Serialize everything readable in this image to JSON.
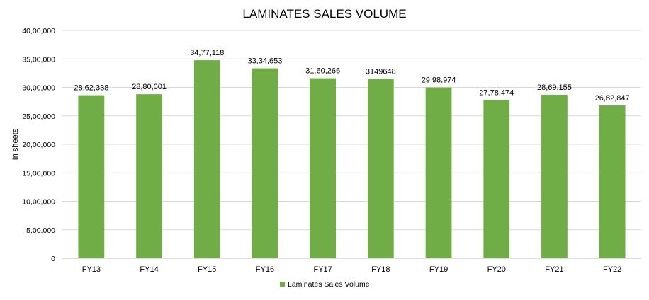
{
  "chart_data": {
    "type": "bar",
    "title": "LAMINATES SALES VOLUME",
    "ylabel": "In sheets",
    "xlabel": "",
    "categories": [
      "FY13",
      "FY14",
      "FY15",
      "FY16",
      "FY17",
      "FY18",
      "FY19",
      "FY20",
      "FY21",
      "FY22"
    ],
    "series": [
      {
        "name": "Laminates Sales Volume",
        "color": "#70ad47",
        "values": [
          2862338,
          2880001,
          3477118,
          3334653,
          3160266,
          3149648,
          2998974,
          2778474,
          2869155,
          2682847
        ],
        "data_labels": [
          "28,62,338",
          "28,80,001",
          "34,77,118",
          "33,34,653",
          "31,60,266",
          "3149648",
          "29,98,974",
          "27,78,474",
          "28,69,155",
          "26,82,847"
        ]
      }
    ],
    "ylim": [
      0,
      4000000
    ],
    "yticks": [
      0,
      500000,
      1000000,
      1500000,
      2000000,
      2500000,
      3000000,
      3500000,
      4000000
    ],
    "ytick_labels": [
      "0",
      "5,00,000",
      "10,00,000",
      "15,00,000",
      "20,00,000",
      "25,00,000",
      "30,00,000",
      "35,00,000",
      "40,00,000"
    ],
    "grid": true,
    "legend_position": "bottom"
  }
}
